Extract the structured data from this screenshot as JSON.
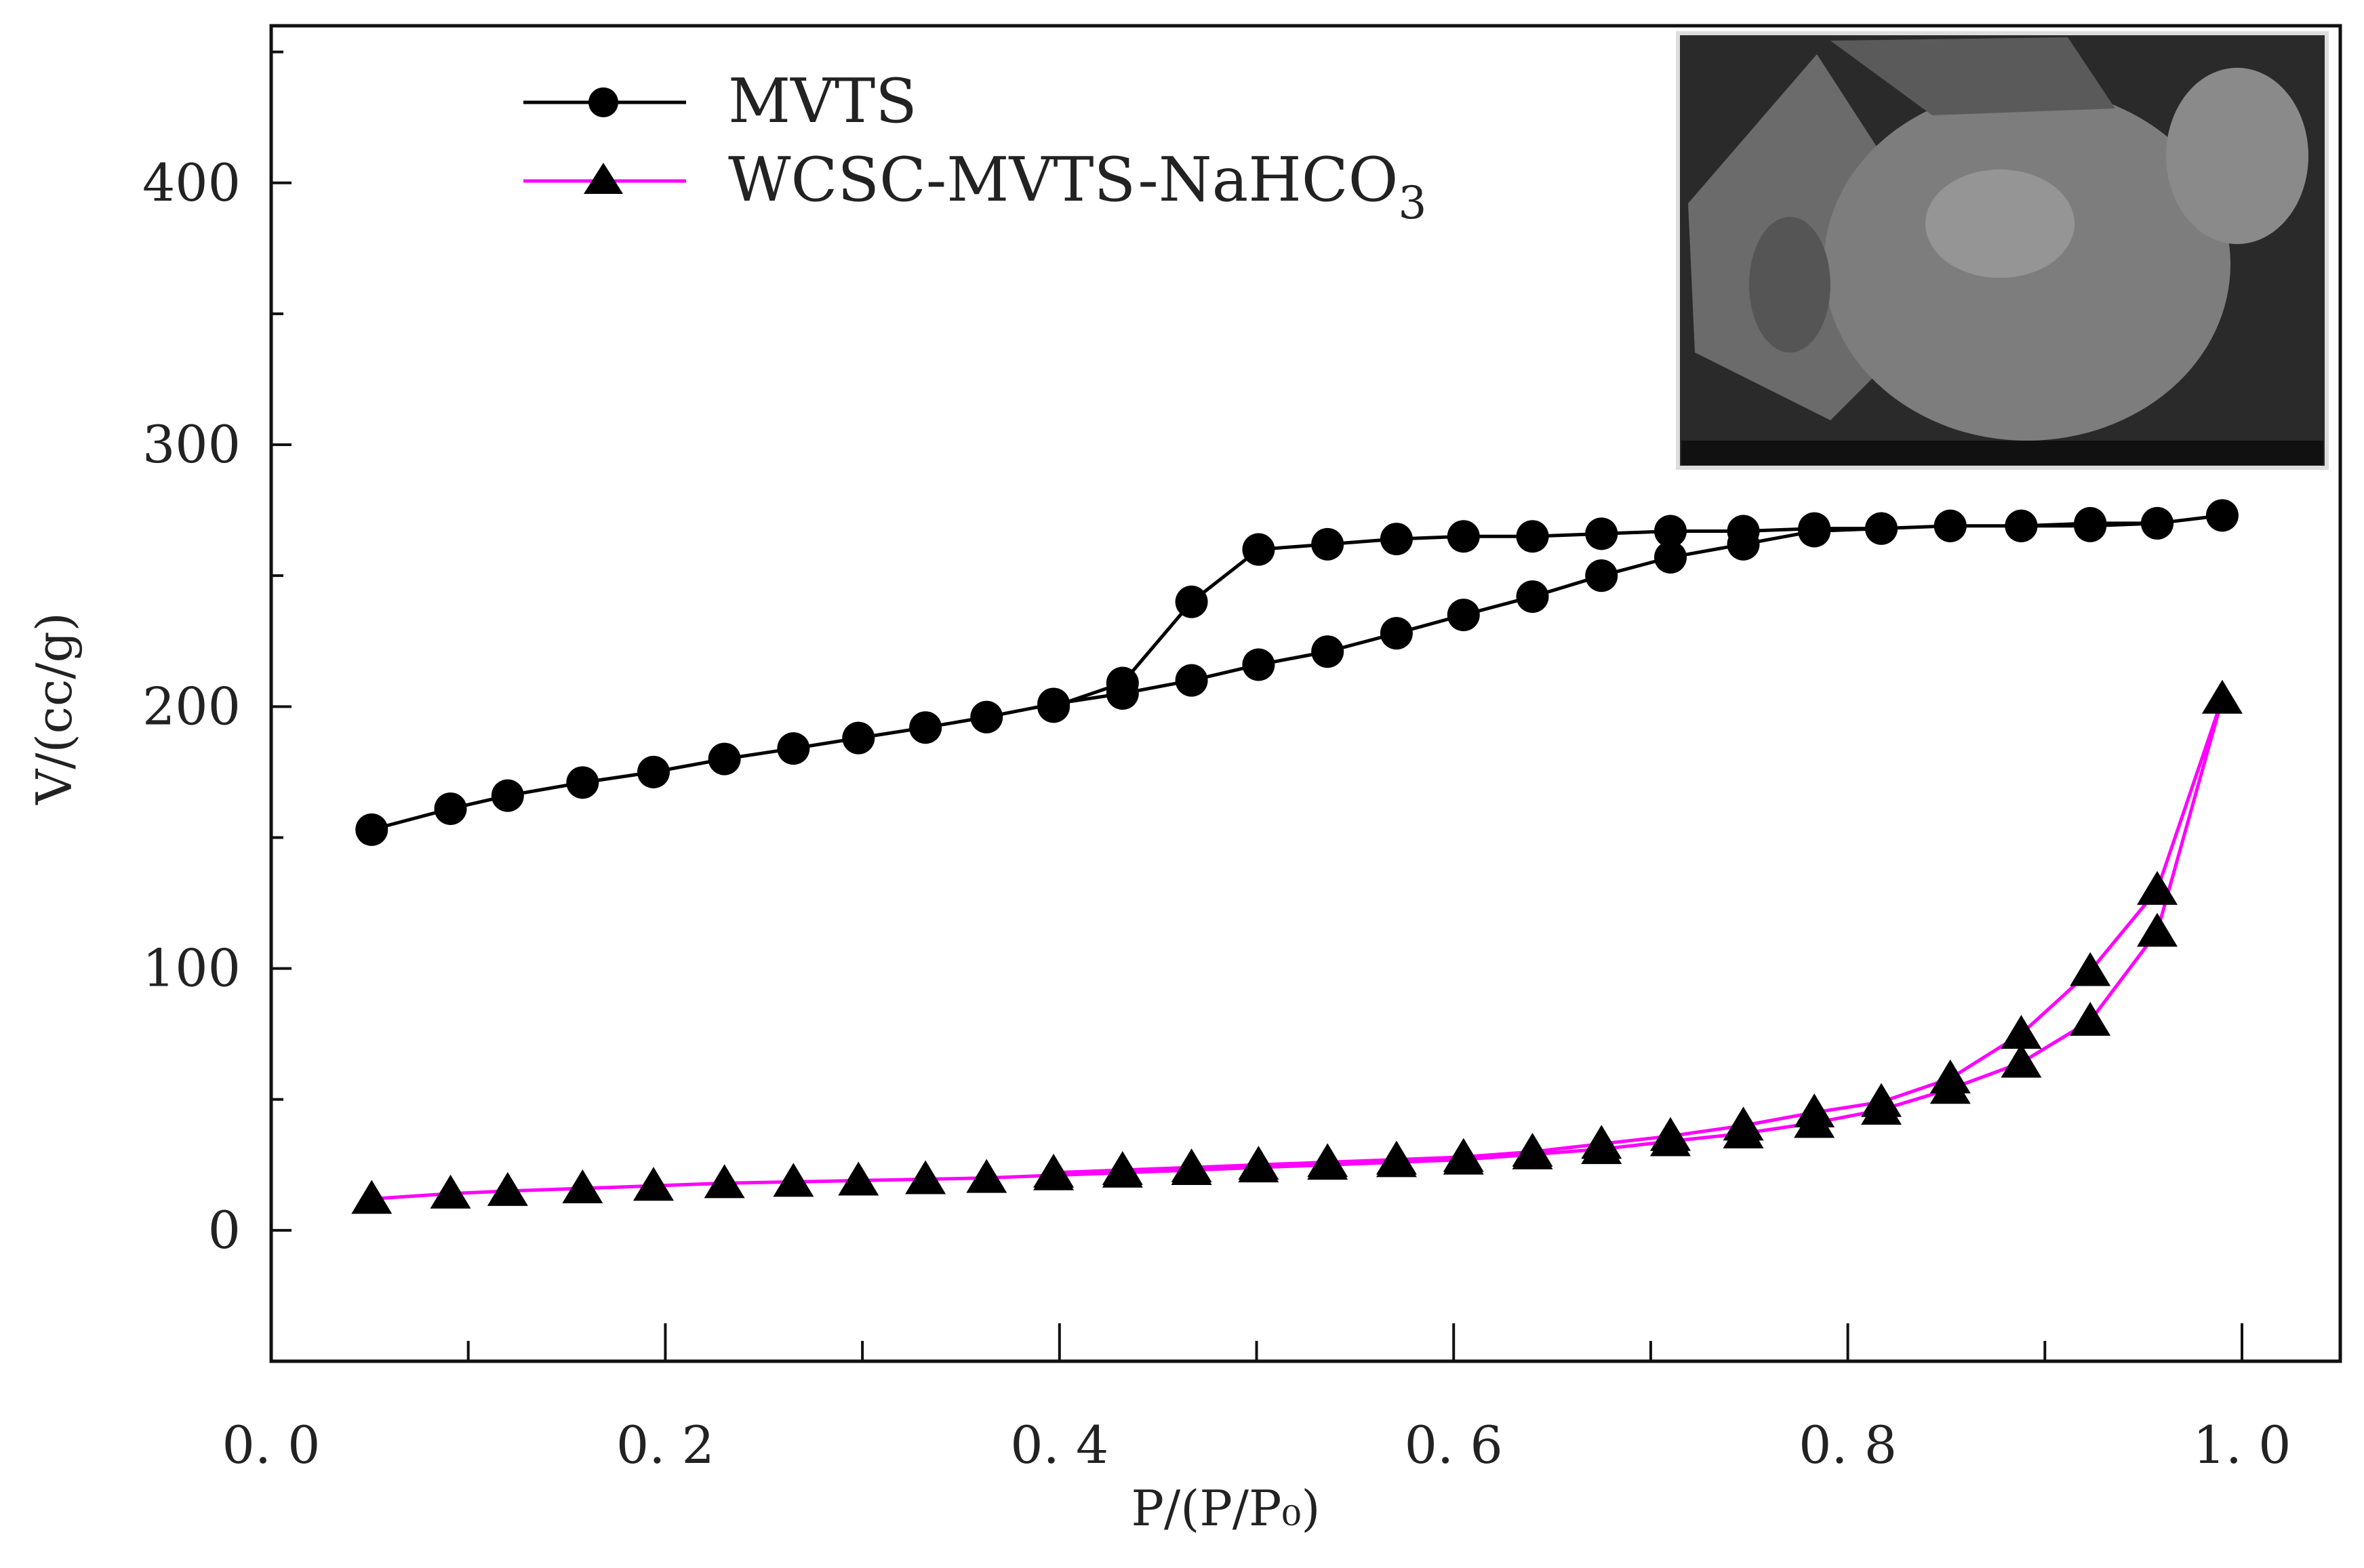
{
  "chart_data": {
    "type": "line",
    "title": "",
    "xlabel": "P/(P/P₀)",
    "ylabel": "V/(cc/g)",
    "xlim": [
      0,
      1.05
    ],
    "ylim": [
      -50,
      460
    ],
    "xticks": [
      0.0,
      0.2,
      0.4,
      0.6,
      0.8,
      1.0
    ],
    "xtick_labels": [
      "0. 0",
      "0. 2",
      "0. 4",
      "0. 6",
      "0. 8",
      "1. 0"
    ],
    "yticks": [
      0,
      100,
      200,
      300,
      400
    ],
    "ytick_labels": [
      "0",
      "100",
      "200",
      "300",
      "400"
    ],
    "grid": false,
    "legend_position": "top-left",
    "series": [
      {
        "name": "MVTS",
        "marker": "circle",
        "color": "#000000",
        "x": [
          0.051,
          0.091,
          0.12,
          0.158,
          0.194,
          0.23,
          0.265,
          0.298,
          0.332,
          0.363,
          0.397,
          0.432,
          0.467,
          0.501,
          0.536,
          0.571,
          0.605,
          0.64,
          0.675,
          0.71,
          0.747,
          0.783,
          0.817,
          0.852,
          0.888,
          0.923,
          0.957,
          0.99,
          0.957,
          0.923,
          0.888,
          0.852,
          0.817,
          0.783,
          0.747,
          0.71,
          0.675,
          0.64,
          0.605,
          0.571,
          0.536,
          0.501,
          0.467,
          0.432,
          0.397
        ],
        "y": [
          153,
          161,
          166,
          171,
          175,
          180,
          184,
          188,
          192,
          196,
          201,
          205,
          210,
          216,
          221,
          228,
          235,
          242,
          250,
          257,
          262,
          267,
          268,
          269,
          269,
          270,
          270,
          273,
          270,
          269,
          269,
          269,
          268,
          268,
          267,
          267,
          266,
          265,
          265,
          264,
          262,
          260,
          240,
          209,
          200
        ]
      },
      {
        "name": "WCSC-MVTS-NaHCO",
        "name_subscript": "3",
        "marker": "triangle",
        "color": "#ff00ff",
        "x": [
          0.051,
          0.091,
          0.12,
          0.158,
          0.194,
          0.23,
          0.265,
          0.298,
          0.332,
          0.363,
          0.397,
          0.432,
          0.467,
          0.501,
          0.536,
          0.571,
          0.605,
          0.64,
          0.675,
          0.71,
          0.747,
          0.783,
          0.817,
          0.852,
          0.888,
          0.923,
          0.957,
          0.99,
          0.957,
          0.923,
          0.888,
          0.852,
          0.817,
          0.783,
          0.747,
          0.71,
          0.675,
          0.64,
          0.605,
          0.571,
          0.536,
          0.501,
          0.467,
          0.432,
          0.397
        ],
        "y": [
          12,
          14,
          15,
          16,
          17,
          18,
          18.5,
          19,
          19.5,
          20,
          21,
          22,
          23,
          24,
          25,
          26,
          27,
          29,
          31,
          34,
          37,
          41,
          46,
          54,
          64,
          80,
          114,
          203,
          130,
          99,
          75,
          58,
          49,
          45,
          40,
          36,
          33,
          30,
          28,
          27,
          26,
          25,
          24,
          23,
          22
        ]
      }
    ]
  }
}
